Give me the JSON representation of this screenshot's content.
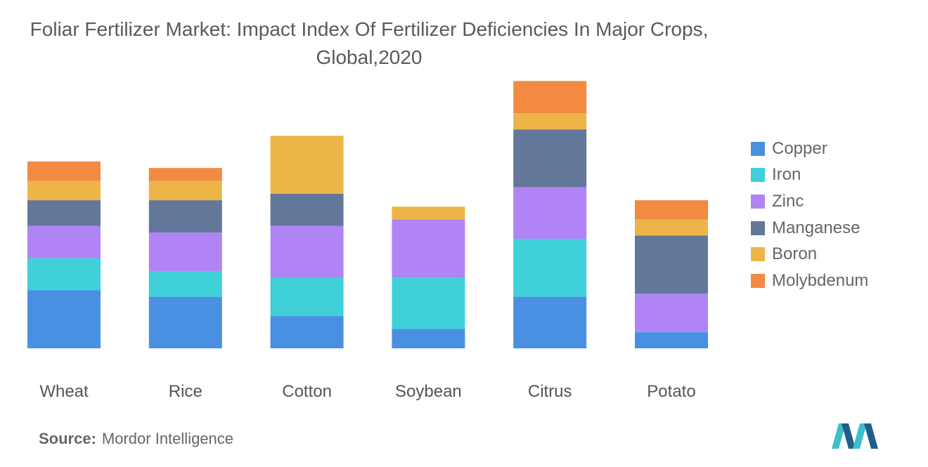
{
  "title": "Foliar Fertilizer Market: Impact Index Of Fertilizer Deficiencies In Major Crops, Global,2020",
  "source_label": "Source:",
  "source_text": "Mordor Intelligence",
  "logo_name": "mordor-intelligence-logo",
  "chart_data": {
    "type": "bar",
    "stacked": true,
    "title": "Foliar Fertilizer Market: Impact Index Of Fertilizer Deficiencies In Major Crops, Global,2020",
    "categories": [
      "Wheat",
      "Rice",
      "Cotton",
      "Soybean",
      "Citrus",
      "Potato"
    ],
    "series": [
      {
        "name": "Copper",
        "color": "#4a90e2",
        "values": [
          9,
          8,
          5,
          3,
          8,
          2.5
        ]
      },
      {
        "name": "Iron",
        "color": "#3fd0d9",
        "values": [
          5,
          4,
          6,
          8,
          9,
          0
        ]
      },
      {
        "name": "Zinc",
        "color": "#b084f5",
        "values": [
          5,
          6,
          8,
          9,
          8,
          6
        ]
      },
      {
        "name": "Manganese",
        "color": "#63779a",
        "values": [
          4,
          5,
          5,
          0,
          9,
          9
        ]
      },
      {
        "name": "Boron",
        "color": "#edb548",
        "values": [
          3,
          3,
          9,
          2,
          2.5,
          2.5
        ]
      },
      {
        "name": "Molybdenum",
        "color": "#f28a42",
        "values": [
          3,
          2,
          0,
          0,
          5,
          3
        ]
      }
    ],
    "ylim": [
      0,
      41
    ],
    "grid": false,
    "legend_position": "right"
  }
}
